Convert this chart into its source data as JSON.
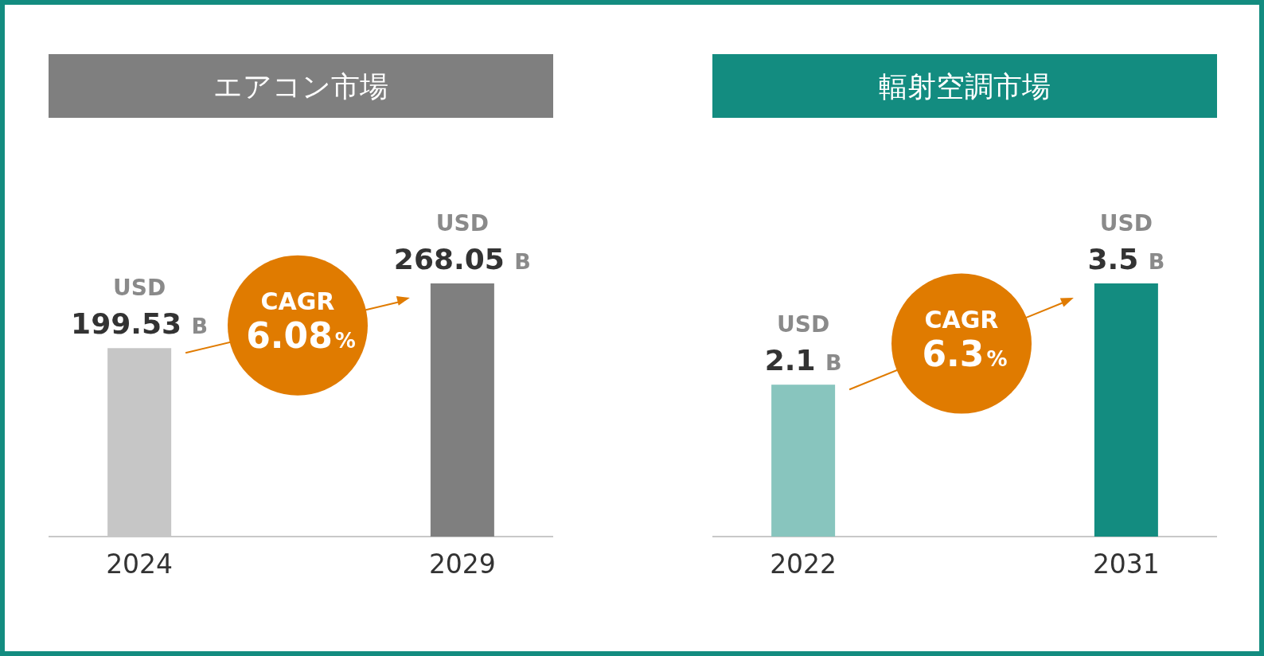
{
  "chart_data": [
    {
      "type": "bar",
      "title": "エアコン市場",
      "categories": [
        "2024",
        "2029"
      ],
      "values": [
        199.53,
        268.05
      ],
      "colors": [
        "#c6c6c6",
        "#7f7f7f"
      ],
      "value_labels": [
        "USD 199.53 B",
        "USD 268.05 B"
      ],
      "annotations": [
        "CAGR 6.08%"
      ]
    },
    {
      "type": "bar",
      "title": "輻射空調市場",
      "categories": [
        "2022",
        "2031"
      ],
      "values": [
        2.1,
        3.5
      ],
      "colors": [
        "#88c5be",
        "#138c80"
      ],
      "value_labels": [
        "USD 2.1 B",
        "USD 3.5 B"
      ],
      "annotations": [
        "CAGR 6.3%"
      ]
    }
  ]
}
